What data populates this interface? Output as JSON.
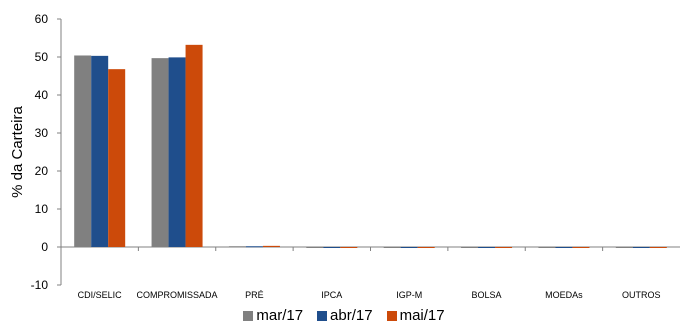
{
  "chart_data": {
    "type": "bar",
    "categories": [
      "CDI/SELIC",
      "COMPROMISSADA",
      "PRÉ",
      "IPCA",
      "IGP-M",
      "BOLSA",
      "MOEDAs",
      "OUTROS"
    ],
    "series": [
      {
        "name": "mar/17",
        "color": "#808080",
        "values": [
          50.4,
          49.7,
          0.2,
          0,
          0,
          0,
          0,
          0
        ]
      },
      {
        "name": "abr/17",
        "color": "#1f4e8c",
        "values": [
          50.3,
          49.9,
          0.2,
          0,
          0,
          0,
          0,
          0
        ]
      },
      {
        "name": "mai/17",
        "color": "#cc4a0a",
        "values": [
          46.8,
          53.2,
          0.3,
          0,
          0,
          0,
          0,
          0
        ]
      }
    ],
    "ylabel": "% da Carteira",
    "ylim": [
      -10,
      60
    ],
    "yticks": [
      -10,
      0,
      10,
      20,
      30,
      40,
      50,
      60
    ],
    "grid": false,
    "legend": "bottom"
  }
}
